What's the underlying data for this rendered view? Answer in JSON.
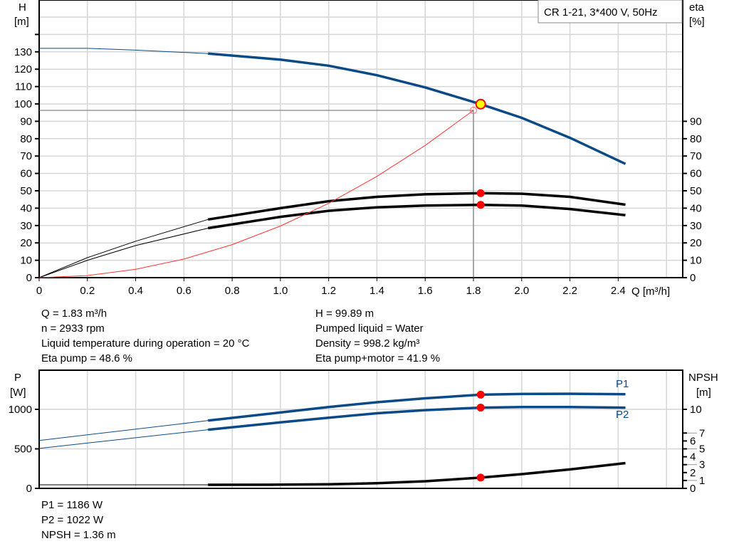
{
  "chart_data": [
    {
      "type": "line",
      "title": "CR 1-21, 3*400 V, 50Hz",
      "xlabel": "Q [m³/h]",
      "ylabel": "H\n[m]",
      "ylabel_right": "eta\n[%]",
      "xlim": [
        0,
        2.65
      ],
      "ylim": [
        0,
        160
      ],
      "xticks": [
        0,
        0.2,
        0.4,
        0.6,
        0.8,
        1.0,
        1.2,
        1.4,
        1.6,
        1.8,
        2.0,
        2.2,
        2.4
      ],
      "xtick_labels": [
        "0",
        "0.2",
        "0.4",
        "0.6",
        "0.8",
        "1.0",
        "1.2",
        "1.4",
        "1.6",
        "1.8",
        "2.0",
        "2.2",
        "2.4"
      ],
      "yticks": [
        0,
        10,
        20,
        30,
        40,
        50,
        60,
        70,
        80,
        90,
        100,
        110,
        120,
        130
      ],
      "yticks_right": [
        0,
        10,
        20,
        30,
        40,
        50,
        60,
        70,
        80,
        90
      ],
      "grid": true,
      "series": [
        {
          "key": "H",
          "color": "#0b4a86",
          "thin_until": 0.7,
          "x": [
            0,
            0.2,
            0.4,
            0.7,
            1.0,
            1.2,
            1.4,
            1.6,
            1.83,
            2.0,
            2.2,
            2.43
          ],
          "y": [
            132,
            132,
            131,
            129,
            125.5,
            122,
            116.5,
            109.5,
            99.89,
            92,
            80.5,
            65.5
          ]
        },
        {
          "key": "eta_pump",
          "color": "#000000",
          "thin_until": 0.7,
          "x": [
            0,
            0.2,
            0.4,
            0.7,
            1.0,
            1.2,
            1.4,
            1.6,
            1.83,
            2.0,
            2.2,
            2.43
          ],
          "y": [
            0,
            11.5,
            21,
            33.5,
            40,
            44,
            46.5,
            48,
            48.6,
            48.3,
            46.5,
            42
          ]
        },
        {
          "key": "eta_pump_motor",
          "color": "#000000",
          "thin_until": 0.7,
          "x": [
            0,
            0.2,
            0.4,
            0.7,
            1.0,
            1.2,
            1.4,
            1.6,
            1.83,
            2.0,
            2.2,
            2.43
          ],
          "y": [
            0,
            10,
            18.5,
            28.5,
            35,
            38.5,
            40.5,
            41.5,
            41.9,
            41.5,
            39.5,
            36
          ]
        },
        {
          "key": "system_curve",
          "color": "#ff3333",
          "thin_until": 99,
          "x": [
            0,
            0.2,
            0.4,
            0.6,
            0.8,
            1.0,
            1.2,
            1.4,
            1.6,
            1.8
          ],
          "y": [
            0,
            1.2,
            4.8,
            10.7,
            19,
            29.7,
            42.8,
            58.3,
            76.1,
            96.3
          ]
        }
      ],
      "operating_point": {
        "Q": 1.83,
        "H": 99.89,
        "eta_pump": 48.6,
        "eta_pump_motor": 41.9
      },
      "system_point": {
        "Q": 1.8,
        "H": 96.3
      }
    },
    {
      "type": "line",
      "ylabel": "P\n[W]",
      "ylabel_right": "NPSH\n[m]",
      "xlim": [
        0,
        2.65
      ],
      "ylim": [
        0,
        1500
      ],
      "ylim_right": [
        0,
        15
      ],
      "yticks": [
        0,
        500,
        1000
      ],
      "yticks_right": [
        0,
        1,
        2,
        3,
        4,
        5,
        6,
        7,
        10
      ],
      "grid": true,
      "series": [
        {
          "name": "P1",
          "axis": "left",
          "color": "#0b4a86",
          "thin_until": 0.7,
          "x": [
            0,
            0.7,
            1.0,
            1.2,
            1.4,
            1.6,
            1.83,
            2.0,
            2.2,
            2.43
          ],
          "y": [
            605,
            858,
            960,
            1030,
            1090,
            1140,
            1186,
            1195,
            1197,
            1192
          ]
        },
        {
          "name": "P2",
          "axis": "left",
          "color": "#0b4a86",
          "thin_until": 0.7,
          "x": [
            0,
            0.7,
            1.0,
            1.2,
            1.4,
            1.6,
            1.83,
            2.0,
            2.2,
            2.43
          ],
          "y": [
            505,
            742,
            835,
            895,
            950,
            990,
            1022,
            1030,
            1030,
            1022
          ]
        },
        {
          "key": "NPSH",
          "axis": "right",
          "color": "#000000",
          "thin_until": 0.7,
          "x": [
            0,
            0.7,
            1.0,
            1.2,
            1.4,
            1.6,
            1.83,
            2.0,
            2.2,
            2.43
          ],
          "y": [
            0.45,
            0.45,
            0.47,
            0.52,
            0.65,
            0.9,
            1.36,
            1.8,
            2.4,
            3.2
          ]
        }
      ],
      "operating_point": {
        "Q": 1.83,
        "P1": 1186,
        "P2": 1022,
        "NPSH": 1.36
      }
    }
  ],
  "info": {
    "left": [
      "Q = 1.83 m³/h",
      "n = 2933 rpm",
      "Liquid temperature during operation = 20 °C",
      "Eta pump = 48.6 %"
    ],
    "right": [
      "H = 99.89 m",
      "Pumped liquid = Water",
      "Density = 998.2 kg/m³",
      "Eta pump+motor = 41.9 %"
    ],
    "bottom": [
      "P1 = 1186 W",
      "P2 = 1022 W",
      "NPSH = 1.36 m"
    ]
  }
}
